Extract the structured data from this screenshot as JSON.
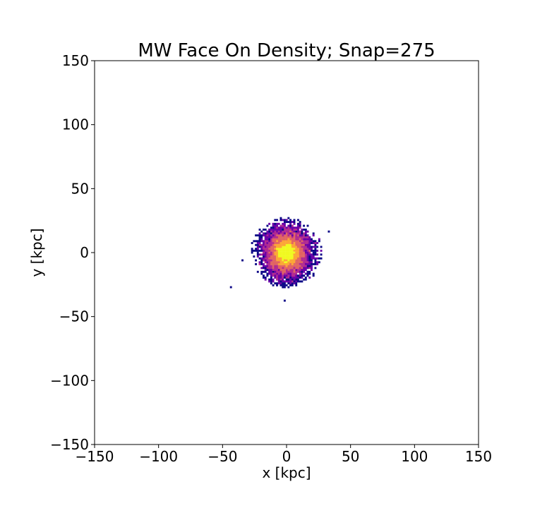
{
  "chart_data": {
    "type": "heatmap",
    "title": "MW Face On Density; Snap=275",
    "xlabel": "x [kpc]",
    "ylabel": "y [kpc]",
    "xlim": [
      -150,
      150
    ],
    "ylim": [
      -150,
      150
    ],
    "xticks": [
      -150,
      -100,
      -50,
      0,
      50,
      100,
      150
    ],
    "yticks": [
      -150,
      -100,
      -50,
      0,
      50,
      100,
      150
    ],
    "xtick_labels": [
      "−150",
      "−100",
      "−50",
      "0",
      "50",
      "100",
      "150"
    ],
    "ytick_labels": [
      "−150",
      "−100",
      "−50",
      "0",
      "50",
      "100",
      "150"
    ],
    "grid": false,
    "colormap": "plasma",
    "colors": {
      "low": "#0d0887",
      "mid_low": "#6a00a8",
      "mid": "#b12a90",
      "mid_high": "#e16462",
      "high": "#fca636",
      "peak": "#f0f921"
    },
    "distribution": {
      "center": [
        0,
        0
      ],
      "core_radius": 5,
      "extent_radius": 22,
      "outliers": [
        [
          -43,
          -27
        ],
        [
          33,
          17
        ],
        [
          -2,
          -37
        ],
        [
          -35,
          -6
        ],
        [
          25,
          10
        ]
      ]
    }
  }
}
